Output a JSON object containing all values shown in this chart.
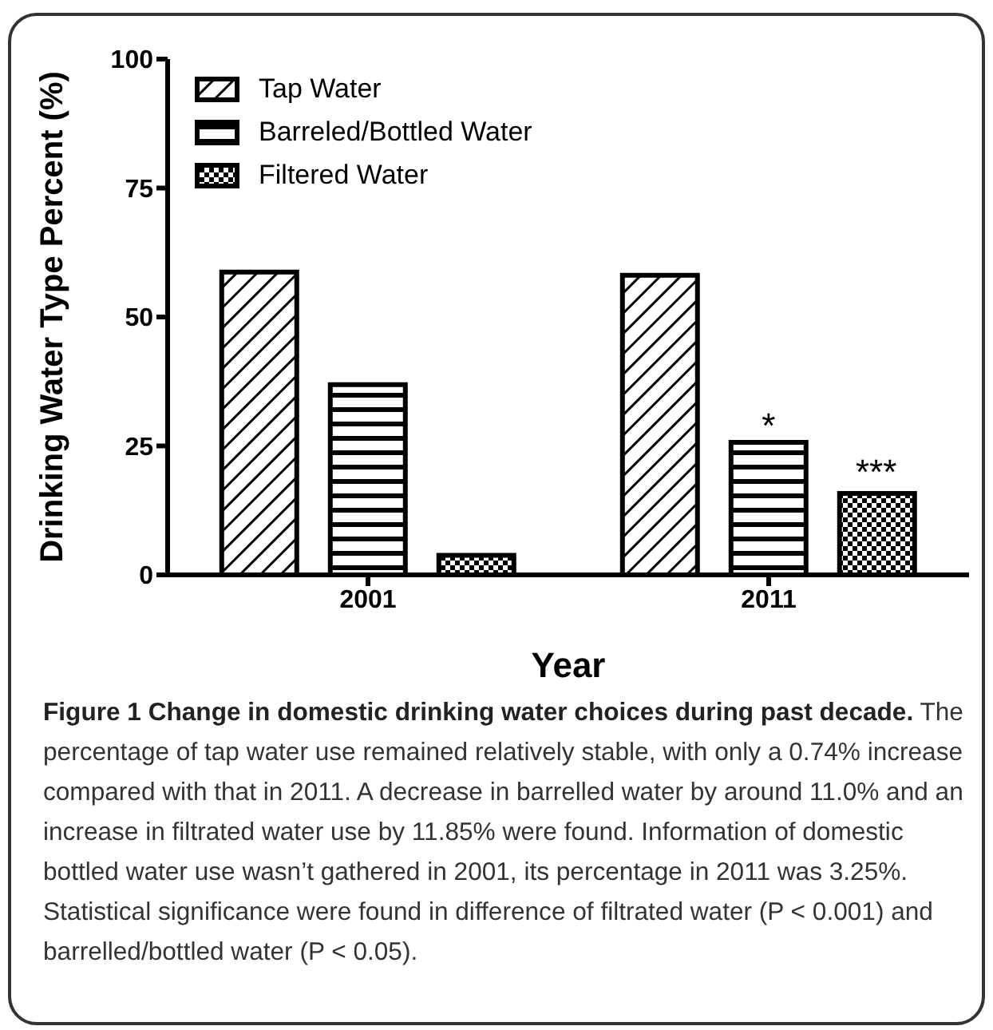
{
  "chart_data": {
    "type": "bar",
    "title": "Figure 1 Change in domestic drinking water choices during past decade.",
    "xlabel": "Year",
    "ylabel": "Drinking Water Type Percent (%)",
    "categories": [
      "2001",
      "2011"
    ],
    "series": [
      {
        "name": "Tap Water",
        "color": "#000000",
        "values": [
          58.7,
          58.1
        ]
      },
      {
        "name": "Barreled/Bottled Water",
        "color": "#000000",
        "values": [
          36.9,
          25.7
        ]
      },
      {
        "name": "Filtered Water",
        "color": "#000000",
        "values": [
          3.8,
          15.8
        ]
      }
    ],
    "ylim": [
      0,
      100
    ],
    "yticks": [
      0,
      25,
      50,
      75,
      100
    ],
    "grid": false,
    "legend": "top left",
    "annotations": [
      {
        "text": "*",
        "x": "2011",
        "y": 25.7
      },
      "***",
      "The percentage of tap water use remained relatively stable, with only a 0.74% increase compared with that in 2011. A decrease in barrelled water by around 11.0% and an increase in filtrated water use by 11.85% were found. Information of domestic bottled water use wasn’t gathered in 2001, its percentage in 2011 was 3.25%. Statistical significance were found in difference of filtrated water (P < 0.001) and barrelled/bottled water (P < 0.05)."
    ]
  }
}
